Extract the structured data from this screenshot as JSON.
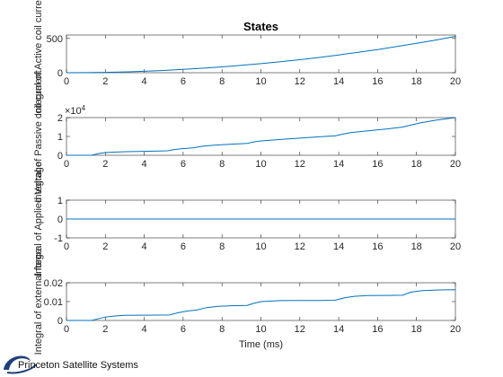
{
  "chart_data": [
    {
      "type": "line",
      "title": "States",
      "ylabel": "Integral of Active  coil current",
      "xlim": [
        0,
        20
      ],
      "ylim": [
        0,
        550
      ],
      "xticks": [
        "0",
        "2",
        "4",
        "6",
        "8",
        "10",
        "12",
        "14",
        "16",
        "18",
        "20"
      ],
      "yticks": [
        {
          "v": 0,
          "label": "0"
        },
        {
          "v": 500,
          "label": "500"
        }
      ],
      "exponent": "",
      "color": "#0072bd",
      "x": [
        0,
        1,
        2,
        3,
        4,
        5,
        6,
        7,
        8,
        9,
        10,
        11,
        12,
        13,
        14,
        15,
        16,
        17,
        18,
        19,
        20
      ],
      "y": [
        0,
        1.3,
        5.3,
        12,
        21,
        33,
        48,
        65,
        85,
        107,
        132,
        160,
        190,
        223,
        259,
        297,
        338,
        382,
        428,
        477,
        530
      ]
    },
    {
      "type": "line",
      "title": "",
      "ylabel": "Integral of Passive coil current",
      "xlim": [
        0,
        20
      ],
      "ylim": [
        0,
        20000
      ],
      "xticks": [
        "0",
        "2",
        "4",
        "6",
        "8",
        "10",
        "12",
        "14",
        "16",
        "18",
        "20"
      ],
      "yticks": [
        {
          "v": 0,
          "label": "0"
        },
        {
          "v": 10000,
          "label": "1"
        },
        {
          "v": 20000,
          "label": "2"
        }
      ],
      "exponent": "×10",
      "exponent_power": "4",
      "color": "#0072bd",
      "x": [
        0,
        1.3,
        1.6,
        1.9,
        2.3,
        3,
        4,
        5.2,
        5.5,
        5.9,
        6.5,
        7,
        7.6,
        8.5,
        9.3,
        9.6,
        10,
        11,
        12,
        13,
        13.8,
        14.2,
        14.6,
        15.5,
        16.5,
        17.3,
        17.7,
        18.2,
        19,
        20
      ],
      "y": [
        0,
        0,
        800,
        1300,
        1600,
        1900,
        2100,
        2400,
        3000,
        3500,
        3900,
        4800,
        5400,
        5900,
        6300,
        7000,
        7600,
        8400,
        9100,
        9800,
        10300,
        11200,
        12000,
        13000,
        14000,
        15000,
        16000,
        17200,
        18600,
        20000
      ]
    },
    {
      "type": "line",
      "title": "",
      "ylabel": "Integral of Applied Voltage",
      "xlim": [
        0,
        20
      ],
      "ylim": [
        -1,
        1
      ],
      "xticks": [
        "0",
        "2",
        "4",
        "6",
        "8",
        "10",
        "12",
        "14",
        "16",
        "18",
        "20"
      ],
      "yticks": [
        {
          "v": -1,
          "label": "-1"
        },
        {
          "v": 0,
          "label": "0"
        },
        {
          "v": 1,
          "label": "1"
        }
      ],
      "exponent": "",
      "color": "#0072bd",
      "x": [
        0,
        20
      ],
      "y": [
        0,
        0
      ]
    },
    {
      "type": "line",
      "title": "",
      "ylabel": "Integral of external force",
      "xlabel": "Time (ms)",
      "xlim": [
        0,
        20
      ],
      "ylim": [
        0,
        0.02
      ],
      "xticks": [
        "0",
        "2",
        "4",
        "6",
        "8",
        "10",
        "12",
        "14",
        "16",
        "18",
        "20"
      ],
      "yticks": [
        {
          "v": 0,
          "label": "0"
        },
        {
          "v": 0.01,
          "label": "0.01"
        },
        {
          "v": 0.02,
          "label": "0.02"
        }
      ],
      "exponent": "",
      "color": "#0072bd",
      "x": [
        0,
        1.3,
        1.6,
        2,
        2.5,
        3,
        4,
        5.3,
        5.7,
        6.2,
        6.7,
        7.2,
        7.8,
        8.5,
        9.3,
        9.6,
        10,
        11,
        12,
        13,
        13.8,
        14.3,
        14.8,
        15.5,
        16.5,
        17.3,
        17.7,
        18.3,
        19.2,
        20
      ],
      "y": [
        0,
        0,
        0.0008,
        0.0018,
        0.0024,
        0.0027,
        0.0028,
        0.0029,
        0.004,
        0.005,
        0.0055,
        0.0068,
        0.0075,
        0.0078,
        0.008,
        0.009,
        0.01,
        0.0105,
        0.0106,
        0.0106,
        0.0107,
        0.012,
        0.0128,
        0.0132,
        0.0133,
        0.0134,
        0.015,
        0.0158,
        0.0162,
        0.0163
      ]
    }
  ],
  "logo": {
    "text": "Princeton Satellite Systems",
    "color": "#1f3f7a"
  }
}
